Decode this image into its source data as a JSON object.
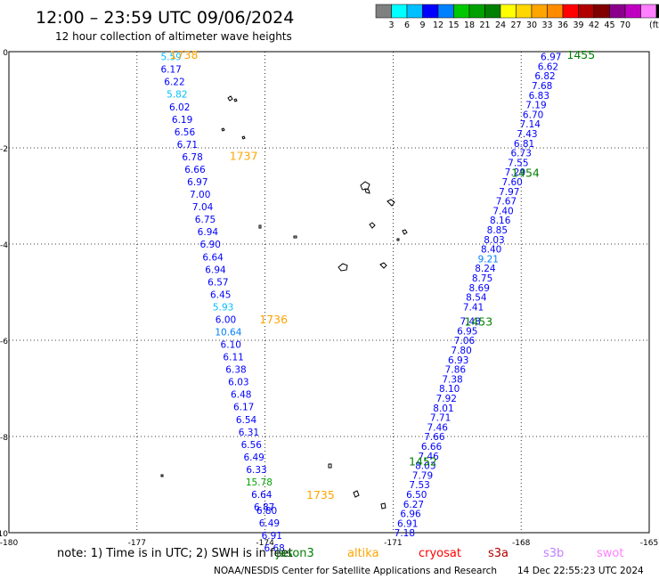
{
  "header": {
    "title": "12:00 – 23:59 UTC 09/06/2024",
    "subtitle": "12 hour collection of altimeter wave heights"
  },
  "colorbar": {
    "colors": [
      "#808080",
      "#00ffff",
      "#00bfff",
      "#0000ff",
      "#0080ff",
      "#00c800",
      "#00a000",
      "#008000",
      "#ffff00",
      "#ffd700",
      "#ffa500",
      "#ff8c00",
      "#ff0000",
      "#b00000",
      "#800000",
      "#8b008b",
      "#c000c0",
      "#ff80ff",
      "#000000"
    ],
    "ticks": [
      "3",
      "6",
      "9",
      "12",
      "15",
      "18",
      "21",
      "24",
      "27",
      "30",
      "33",
      "36",
      "39",
      "42",
      "45",
      "70"
    ],
    "unit": "(ft)"
  },
  "legend": {
    "note": "note:  1) Time is in UTC; 2) SWH is in feet",
    "satellites": [
      {
        "name": "jason3",
        "color": "#008000"
      },
      {
        "name": "altika",
        "color": "#ffa500"
      },
      {
        "name": "cryosat",
        "color": "#ff0000"
      },
      {
        "name": "s3a",
        "color": "#b00000"
      },
      {
        "name": "s3b",
        "color": "#c080ff"
      },
      {
        "name": "swot",
        "color": "#ff80ff"
      }
    ]
  },
  "footer": {
    "credit": "NOAA/NESDIS Center for Satellite Applications and Research",
    "timestamp": "14 Dec 22:55:23 UTC 2024"
  },
  "chart_data": {
    "type": "scatter",
    "xlim": [
      -180,
      -165
    ],
    "ylim": [
      -10,
      0
    ],
    "xticks": [
      "-180",
      "-177",
      "-174",
      "-171",
      "-168",
      "-165"
    ],
    "yticks": [
      "0",
      "-2",
      "-4",
      "-6",
      "-8",
      "-10"
    ],
    "tracks": [
      {
        "satellite": "altika",
        "color": "#ffa500",
        "time_labels": [
          {
            "text": "1738",
            "x": -175.9,
            "y": 0.0
          },
          {
            "text": "1737",
            "x": -174.5,
            "y": -2.1
          },
          {
            "text": "1736",
            "x": -173.8,
            "y": -5.5
          },
          {
            "text": "1735",
            "x": -172.7,
            "y": -9.15
          }
        ],
        "points": [
          {
            "x": -176.2,
            "y": -0.03,
            "v": "5.59"
          },
          {
            "x": -176.2,
            "y": -0.29,
            "v": "6.17"
          },
          {
            "x": -176.12,
            "y": -0.55,
            "v": "6.22"
          },
          {
            "x": -176.06,
            "y": -0.81,
            "v": "5.82"
          },
          {
            "x": -176.0,
            "y": -1.07,
            "v": "6.02"
          },
          {
            "x": -175.94,
            "y": -1.33,
            "v": "6.19"
          },
          {
            "x": -175.88,
            "y": -1.59,
            "v": "6.56"
          },
          {
            "x": -175.82,
            "y": -1.85,
            "v": "6.71"
          },
          {
            "x": -175.7,
            "y": -2.11,
            "v": "6.78"
          },
          {
            "x": -175.64,
            "y": -2.37,
            "v": "6.66"
          },
          {
            "x": -175.58,
            "y": -2.63,
            "v": "6.97"
          },
          {
            "x": -175.52,
            "y": -2.89,
            "v": "7.00"
          },
          {
            "x": -175.46,
            "y": -3.15,
            "v": "7.04"
          },
          {
            "x": -175.4,
            "y": -3.41,
            "v": "6.75"
          },
          {
            "x": -175.34,
            "y": -3.67,
            "v": "6.94"
          },
          {
            "x": -175.28,
            "y": -3.93,
            "v": "6.90"
          },
          {
            "x": -175.22,
            "y": -4.19,
            "v": "6.64"
          },
          {
            "x": -175.16,
            "y": -4.45,
            "v": "6.94"
          },
          {
            "x": -175.1,
            "y": -4.71,
            "v": "6.57"
          },
          {
            "x": -175.04,
            "y": -4.97,
            "v": "6.45"
          },
          {
            "x": -174.98,
            "y": -5.23,
            "v": "5.93"
          },
          {
            "x": -174.92,
            "y": -5.49,
            "v": "6.00"
          },
          {
            "x": -174.86,
            "y": -5.75,
            "v": "10.64"
          },
          {
            "x": -174.8,
            "y": -6.01,
            "v": "6.10"
          },
          {
            "x": -174.74,
            "y": -6.27,
            "v": "6.11"
          },
          {
            "x": -174.68,
            "y": -6.53,
            "v": "6.38"
          },
          {
            "x": -174.62,
            "y": -6.79,
            "v": "6.03"
          },
          {
            "x": -174.56,
            "y": -7.05,
            "v": "6.48"
          },
          {
            "x": -174.5,
            "y": -7.31,
            "v": "6.17"
          },
          {
            "x": -174.44,
            "y": -7.57,
            "v": "6.54"
          },
          {
            "x": -174.38,
            "y": -7.83,
            "v": "6.31"
          },
          {
            "x": -174.32,
            "y": -8.09,
            "v": "6.56"
          },
          {
            "x": -174.26,
            "y": -8.35,
            "v": "6.49"
          },
          {
            "x": -174.2,
            "y": -8.61,
            "v": "6.33"
          },
          {
            "x": -174.14,
            "y": -8.87,
            "v": "15.78"
          },
          {
            "x": -174.08,
            "y": -9.13,
            "v": "6.64"
          },
          {
            "x": -174.02,
            "y": -9.39,
            "v": "6.87"
          },
          {
            "x": -173.96,
            "y": -9.46,
            "v": "6.80"
          },
          {
            "x": -173.9,
            "y": -9.72,
            "v": "6.49"
          },
          {
            "x": -173.84,
            "y": -9.98,
            "v": "6.91"
          },
          {
            "x": -173.78,
            "y": -10.24,
            "v": "6.68"
          }
        ]
      },
      {
        "satellite": "jason3",
        "color": "#008000",
        "time_labels": [
          {
            "text": "1455",
            "x": -166.6,
            "y": 0.0
          },
          {
            "text": "1454",
            "x": -167.9,
            "y": -2.45
          },
          {
            "text": "1453",
            "x": -169.0,
            "y": -5.55
          },
          {
            "text": "1452",
            "x": -170.3,
            "y": -8.45
          }
        ],
        "points": [
          {
            "x": -167.3,
            "y": -0.03,
            "v": "6.97"
          },
          {
            "x": -167.37,
            "y": -0.23,
            "v": "6.62"
          },
          {
            "x": -167.44,
            "y": -0.43,
            "v": "6.82"
          },
          {
            "x": -167.51,
            "y": -0.63,
            "v": "7.68"
          },
          {
            "x": -167.58,
            "y": -0.83,
            "v": "6.83"
          },
          {
            "x": -167.65,
            "y": -1.03,
            "v": "7.19"
          },
          {
            "x": -167.72,
            "y": -1.23,
            "v": "6.70"
          },
          {
            "x": -167.79,
            "y": -1.43,
            "v": "7.14"
          },
          {
            "x": -167.86,
            "y": -1.63,
            "v": "7.43"
          },
          {
            "x": -167.93,
            "y": -1.83,
            "v": "6.81"
          },
          {
            "x": -168.0,
            "y": -2.03,
            "v": "6.73"
          },
          {
            "x": -168.07,
            "y": -2.23,
            "v": "7.55"
          },
          {
            "x": -168.14,
            "y": -2.43,
            "v": "7.29"
          },
          {
            "x": -168.21,
            "y": -2.63,
            "v": "7.60"
          },
          {
            "x": -168.28,
            "y": -2.83,
            "v": "7.97"
          },
          {
            "x": -168.35,
            "y": -3.03,
            "v": "7.67"
          },
          {
            "x": -168.42,
            "y": -3.23,
            "v": "7.40"
          },
          {
            "x": -168.49,
            "y": -3.43,
            "v": "8.16"
          },
          {
            "x": -168.56,
            "y": -3.63,
            "v": "8.85"
          },
          {
            "x": -168.63,
            "y": -3.83,
            "v": "8.03"
          },
          {
            "x": -168.7,
            "y": -4.03,
            "v": "8.40"
          },
          {
            "x": -168.77,
            "y": -4.23,
            "v": "9.21"
          },
          {
            "x": -168.84,
            "y": -4.43,
            "v": "8.24"
          },
          {
            "x": -168.91,
            "y": -4.63,
            "v": "8.75"
          },
          {
            "x": -168.98,
            "y": -4.83,
            "v": "8.69"
          },
          {
            "x": -169.05,
            "y": -5.03,
            "v": "8.54"
          },
          {
            "x": -169.12,
            "y": -5.23,
            "v": "7.41"
          },
          {
            "x": -169.19,
            "y": -5.53,
            "v": "7.48"
          },
          {
            "x": -169.26,
            "y": -5.73,
            "v": "6.95"
          },
          {
            "x": -169.33,
            "y": -5.93,
            "v": "7.06"
          },
          {
            "x": -169.4,
            "y": -6.13,
            "v": "7.80"
          },
          {
            "x": -169.47,
            "y": -6.33,
            "v": "6.93"
          },
          {
            "x": -169.54,
            "y": -6.53,
            "v": "7.86"
          },
          {
            "x": -169.61,
            "y": -6.73,
            "v": "7.38"
          },
          {
            "x": -169.68,
            "y": -6.93,
            "v": "8.10"
          },
          {
            "x": -169.75,
            "y": -7.13,
            "v": "7.92"
          },
          {
            "x": -169.82,
            "y": -7.33,
            "v": "8.01"
          },
          {
            "x": -169.89,
            "y": -7.53,
            "v": "7.71"
          },
          {
            "x": -169.96,
            "y": -7.73,
            "v": "7.46"
          },
          {
            "x": -170.03,
            "y": -7.93,
            "v": "7.66"
          },
          {
            "x": -170.1,
            "y": -8.13,
            "v": "6.66"
          },
          {
            "x": -170.17,
            "y": -8.33,
            "v": "7.46"
          },
          {
            "x": -170.24,
            "y": -8.53,
            "v": "8.03"
          },
          {
            "x": -170.31,
            "y": -8.73,
            "v": "7.79"
          },
          {
            "x": -170.38,
            "y": -8.93,
            "v": "7.53"
          },
          {
            "x": -170.45,
            "y": -9.13,
            "v": "6.50"
          },
          {
            "x": -170.52,
            "y": -9.33,
            "v": "6.27"
          },
          {
            "x": -170.59,
            "y": -9.53,
            "v": "6.96"
          },
          {
            "x": -170.66,
            "y": -9.73,
            "v": "6.91"
          },
          {
            "x": -170.73,
            "y": -9.93,
            "v": "7.18"
          }
        ]
      }
    ]
  }
}
